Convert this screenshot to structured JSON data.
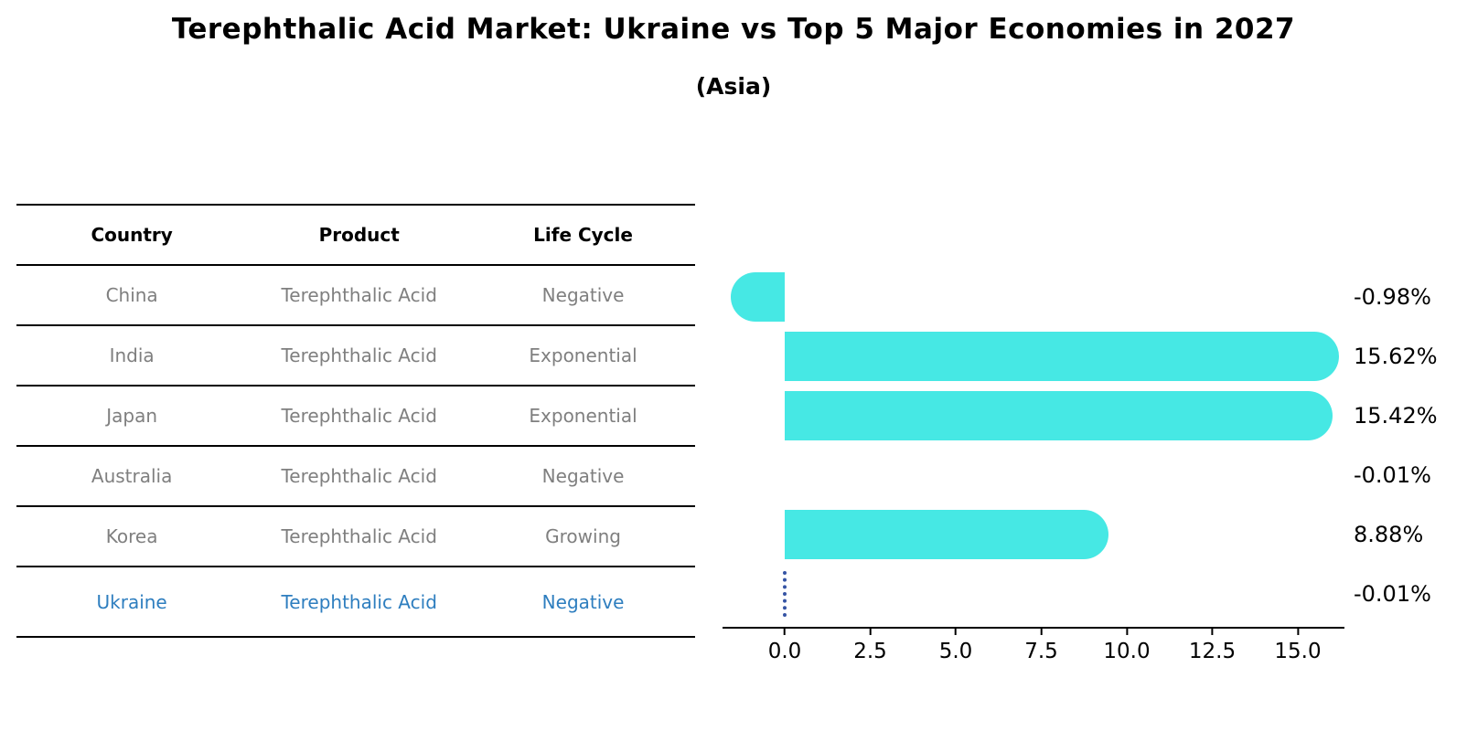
{
  "title": "Terephthalic Acid Market: Ukraine vs Top 5 Major Economies in 2027",
  "subtitle": "(Asia)",
  "table": {
    "headers": [
      "Country",
      "Product",
      "Life Cycle"
    ],
    "rows": [
      {
        "country": "China",
        "product": "Terephthalic Acid",
        "life_cycle": "Negative",
        "highlighted": false
      },
      {
        "country": "India",
        "product": "Terephthalic Acid",
        "life_cycle": "Exponential",
        "highlighted": false
      },
      {
        "country": "Japan",
        "product": "Terephthalic Acid",
        "life_cycle": "Exponential",
        "highlighted": false
      },
      {
        "country": "Australia",
        "product": "Terephthalic Acid",
        "life_cycle": "Negative",
        "highlighted": false
      },
      {
        "country": "Korea",
        "product": "Terephthalic Acid",
        "life_cycle": "Growing",
        "highlighted": false
      },
      {
        "country": "Ukraine",
        "product": "Terephthalic Acid",
        "life_cycle": "Negative",
        "highlighted": true
      }
    ]
  },
  "chart_data": {
    "type": "bar",
    "orientation": "horizontal",
    "categories": [
      "China",
      "India",
      "Japan",
      "Australia",
      "Korea",
      "Ukraine"
    ],
    "values": [
      -0.98,
      15.62,
      15.42,
      -0.01,
      8.88,
      -0.01
    ],
    "value_labels": [
      "-0.98%",
      "15.62%",
      "15.42%",
      "-0.01%",
      "8.88%",
      "-0.01%"
    ],
    "x_ticks": [
      0.0,
      2.5,
      5.0,
      7.5,
      10.0,
      12.5,
      15.0
    ],
    "x_tick_labels": [
      "0.0",
      "2.5",
      "5.0",
      "7.5",
      "10.0",
      "12.5",
      "15.0"
    ],
    "xlim": [
      -1.8,
      16.4
    ],
    "grid": false,
    "legend": "none",
    "highlight_index": 5,
    "highlight_marker": "dotted-vertical-line-at-zero"
  },
  "colors": {
    "bar": "#46E8E4",
    "highlight_text": "#2E7EBF",
    "highlight_marker": "#3554A4",
    "table_text": "#7F7F7F",
    "axis": "#000000"
  }
}
